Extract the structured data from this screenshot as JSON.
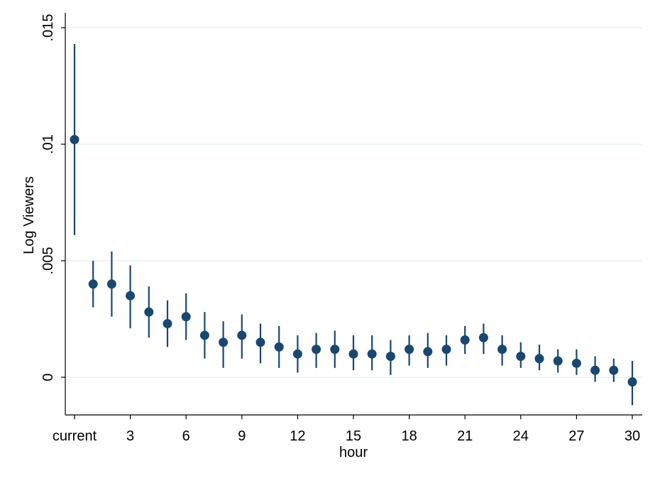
{
  "chart_data": {
    "type": "scatter",
    "title": "",
    "xlabel": "hour",
    "ylabel": "Log Viewers",
    "ylim": [
      -0.0016,
      0.0157
    ],
    "xlim": [
      -0.5,
      30.5
    ],
    "grid": "horizontal",
    "x_tick_labels": [
      {
        "x": 0,
        "label": "current"
      },
      {
        "x": 3,
        "label": "3"
      },
      {
        "x": 6,
        "label": "6"
      },
      {
        "x": 9,
        "label": "9"
      },
      {
        "x": 12,
        "label": "12"
      },
      {
        "x": 15,
        "label": "15"
      },
      {
        "x": 18,
        "label": "18"
      },
      {
        "x": 21,
        "label": "21"
      },
      {
        "x": 24,
        "label": "24"
      },
      {
        "x": 27,
        "label": "27"
      },
      {
        "x": 30,
        "label": "30"
      }
    ],
    "y_tick_labels": [
      {
        "y": 0,
        "label": "0"
      },
      {
        "y": 0.005,
        "label": ".005"
      },
      {
        "y": 0.01,
        "label": ".01"
      },
      {
        "y": 0.015,
        "label": ".015"
      }
    ],
    "series": [
      {
        "x": [
          0,
          1,
          2,
          3,
          4,
          5,
          6,
          7,
          8,
          9,
          10,
          11,
          12,
          13,
          14,
          15,
          16,
          17,
          18,
          19,
          20,
          21,
          22,
          23,
          24,
          25,
          26,
          27,
          28,
          29,
          30
        ],
        "values": [
          0.0102,
          0.004,
          0.004,
          0.0035,
          0.0028,
          0.0023,
          0.0026,
          0.0018,
          0.0015,
          0.0018,
          0.0015,
          0.0013,
          0.001,
          0.0012,
          0.0012,
          0.001,
          0.001,
          0.0009,
          0.0012,
          0.0011,
          0.0012,
          0.0016,
          0.0017,
          0.0012,
          0.0009,
          0.0008,
          0.0007,
          0.0006,
          0.0003,
          0.0003,
          -0.0002
        ],
        "lower": [
          0.0061,
          0.003,
          0.0026,
          0.0021,
          0.0017,
          0.0013,
          0.0016,
          0.0008,
          0.0004,
          0.0008,
          0.0006,
          0.0004,
          0.0002,
          0.0004,
          0.0004,
          0.0003,
          0.0003,
          0.0001,
          0.0005,
          0.0004,
          0.0005,
          0.001,
          0.001,
          0.0005,
          0.0004,
          0.0003,
          0.0002,
          0.0001,
          -0.0002,
          -0.0002,
          -0.0012
        ],
        "upper": [
          0.0143,
          0.005,
          0.0054,
          0.0048,
          0.0039,
          0.0033,
          0.0036,
          0.0028,
          0.0024,
          0.0027,
          0.0023,
          0.0022,
          0.0018,
          0.0019,
          0.002,
          0.0018,
          0.0018,
          0.0016,
          0.0018,
          0.0019,
          0.0018,
          0.0022,
          0.0023,
          0.0018,
          0.0015,
          0.0014,
          0.0012,
          0.0012,
          0.0009,
          0.0008,
          0.0007
        ]
      }
    ],
    "colors": {
      "marker": "#1a476f",
      "grid": "#eaf2f3",
      "axis": "#000000"
    }
  }
}
